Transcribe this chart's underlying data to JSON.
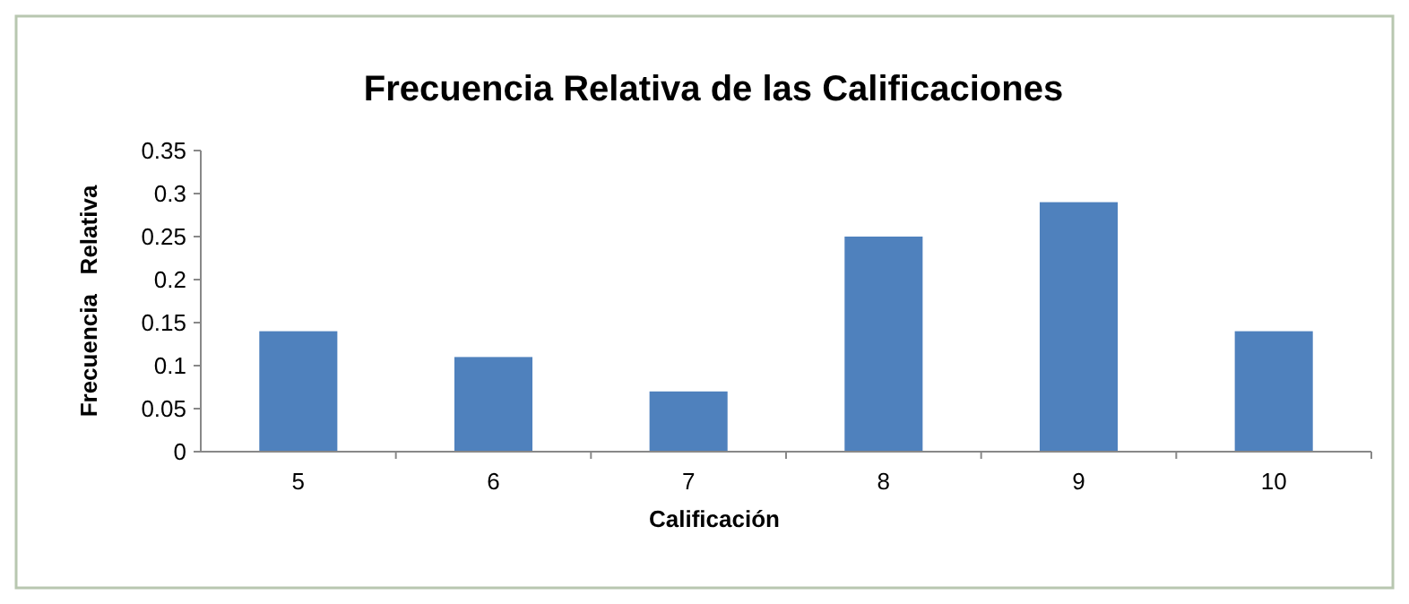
{
  "chart_data": {
    "type": "bar",
    "title": "Frecuencia Relativa de las Calificaciones",
    "xlabel": "Calificación",
    "ylabel": "Frecuencia   Relativa",
    "categories": [
      "5",
      "6",
      "7",
      "8",
      "9",
      "10"
    ],
    "values": [
      0.14,
      0.11,
      0.07,
      0.25,
      0.29,
      0.14
    ],
    "color": "#4f81bd",
    "ylim": [
      0,
      0.35
    ],
    "yticks": [
      0,
      0.05,
      0.1,
      0.15,
      0.2,
      0.25,
      0.3,
      0.35
    ],
    "grid": false
  }
}
